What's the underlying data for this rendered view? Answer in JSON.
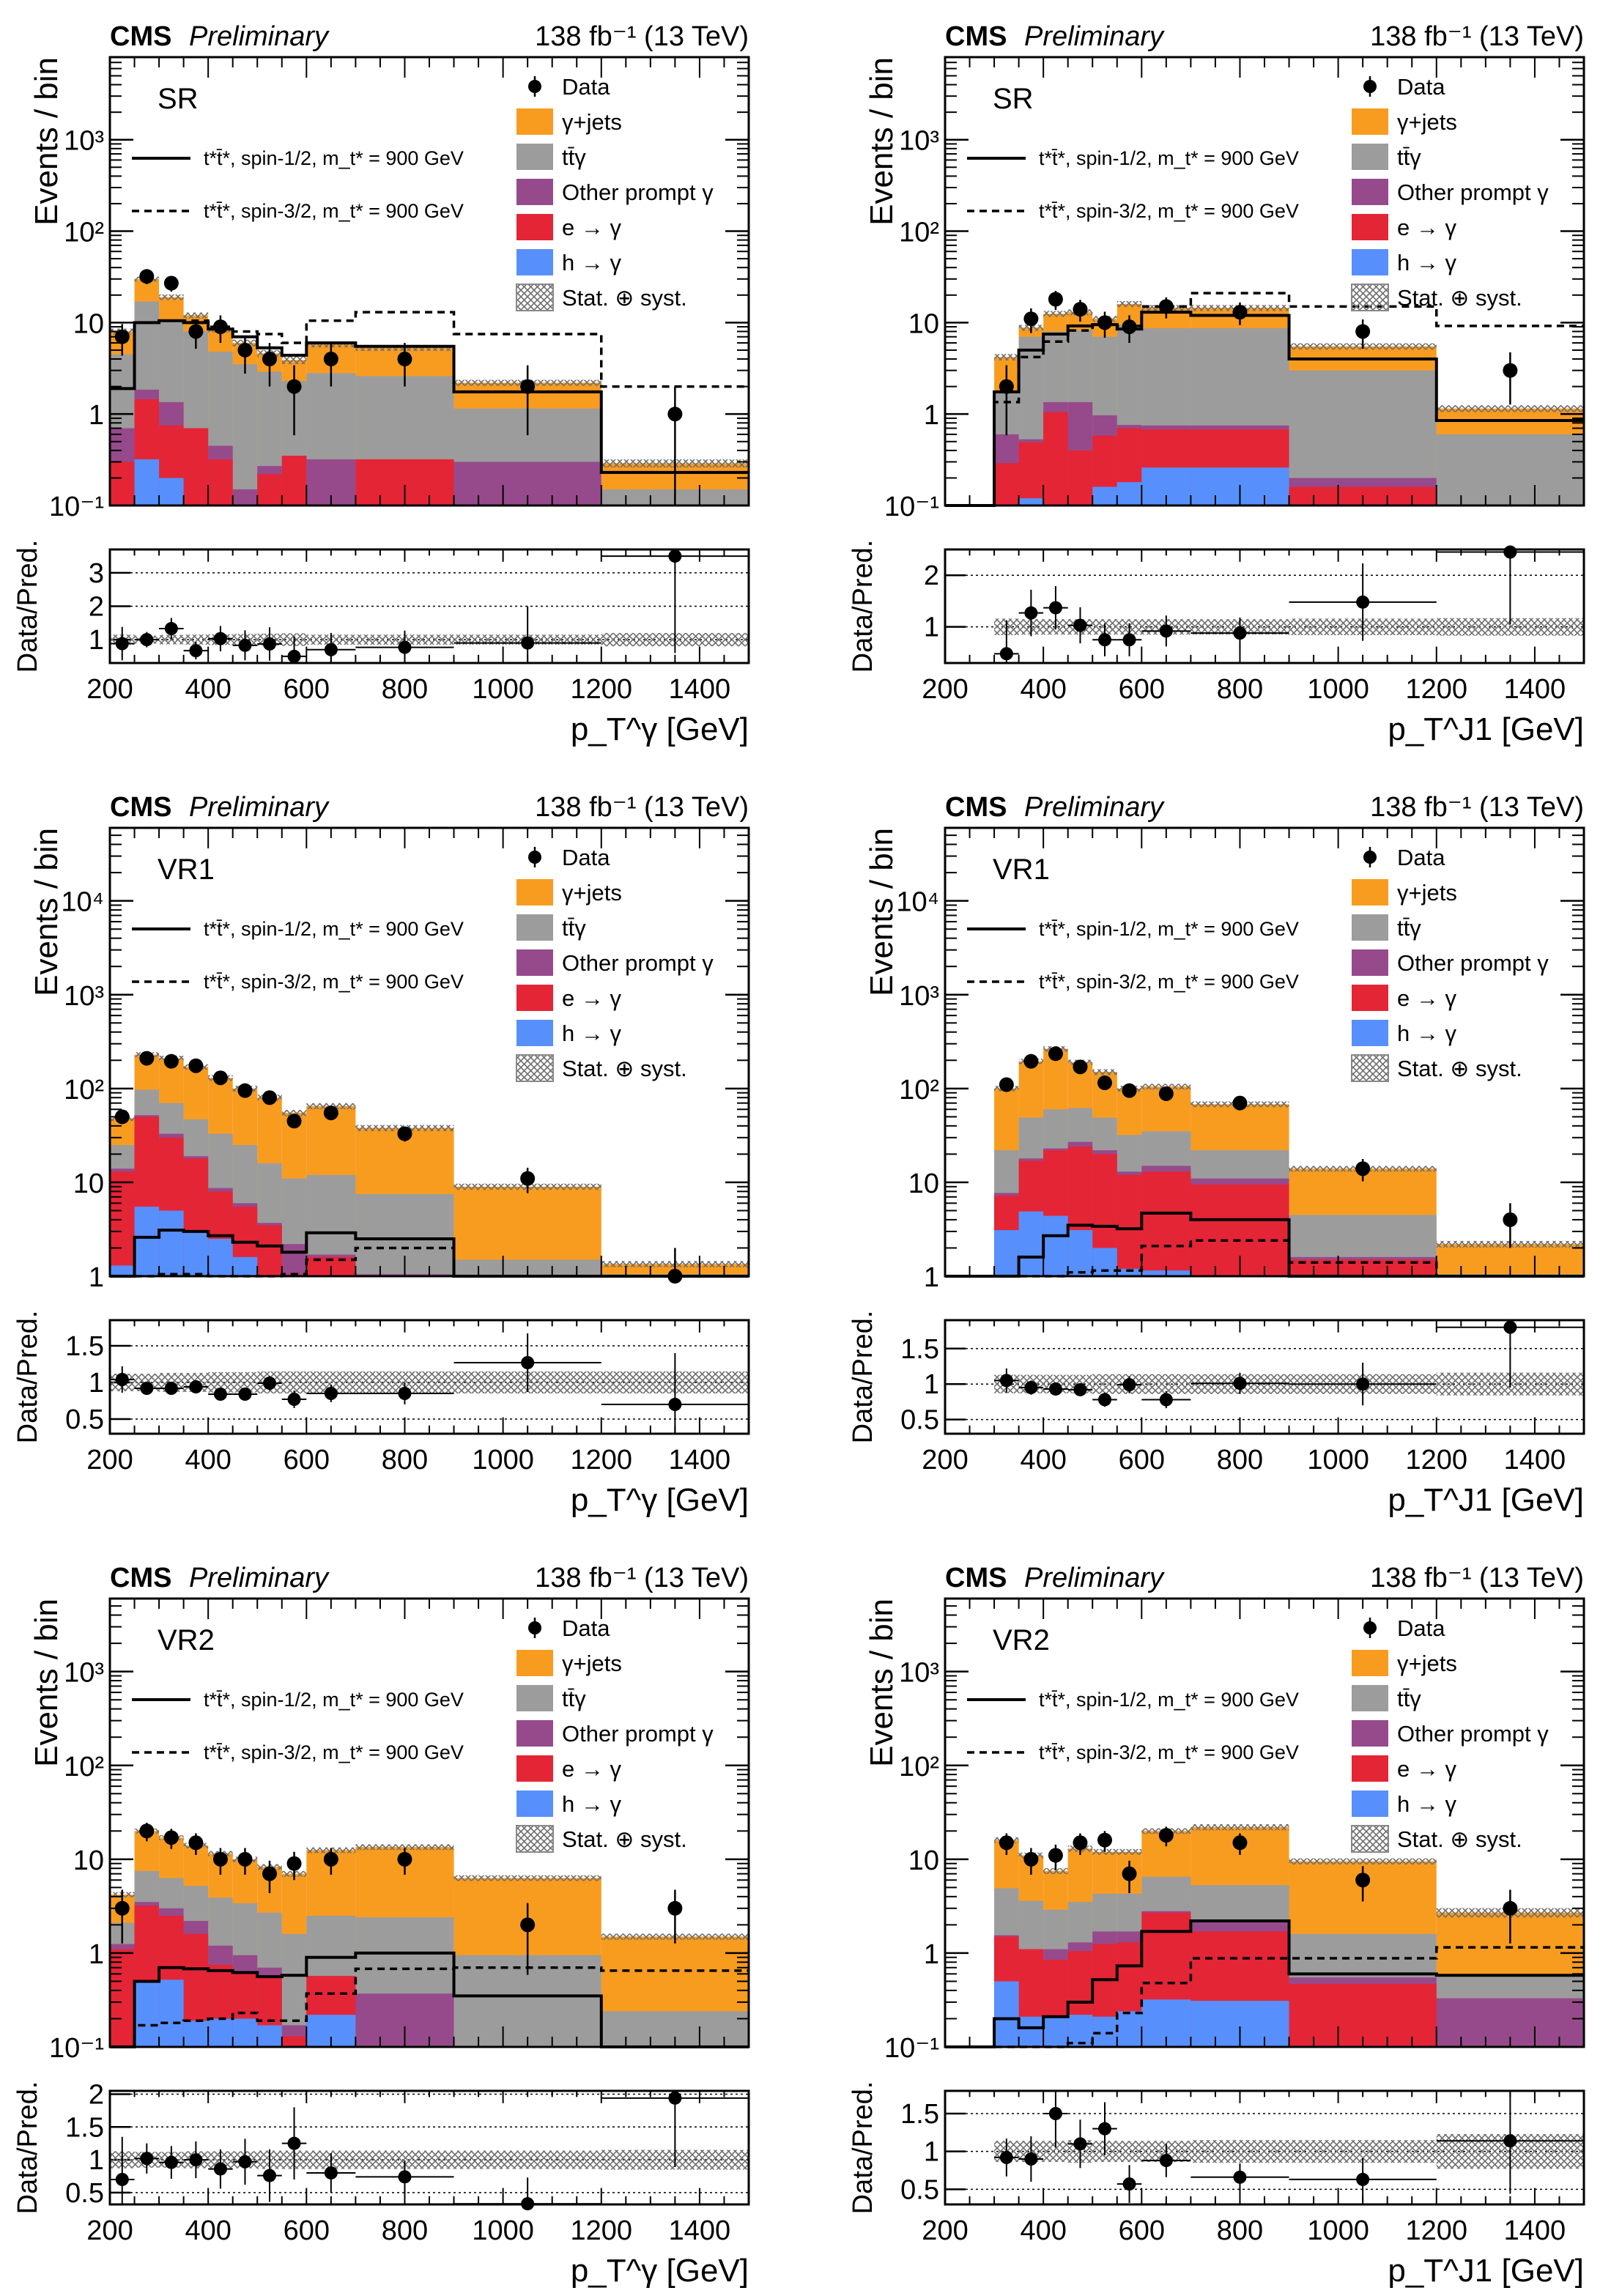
{
  "figure": {
    "experiment_label": "CMS",
    "status_label": "Preliminary",
    "lumi_label": "138 fb⁻¹ (13 TeV)",
    "ylabel_main": "Events / bin",
    "ylabel_ratio": "Data/Pred.",
    "legend": {
      "data": "Data",
      "gjets": "γ+jets",
      "ttg": "tt̄γ",
      "other": "Other prompt γ",
      "etog": "e → γ",
      "htog": "h → γ",
      "unc": "Stat. ⊕ syst.",
      "sig12": "t*t̄*, spin-1/2, m_t* = 900 GeV",
      "sig32": "t*t̄*, spin-3/2, m_t* = 900 GeV"
    },
    "colors": {
      "gjets": "#f89c20",
      "ttg": "#9c9c9c",
      "other": "#964a8b",
      "etog": "#e42536",
      "htog": "#5790fc"
    }
  },
  "chart_data": [
    {
      "type": "bar",
      "stacked": true,
      "region": "SR",
      "xlabel": "p_T^γ [GeV]",
      "ylabel": "Events / bin",
      "yscale": "log",
      "ylim": [
        0.1,
        8000
      ],
      "yticks": [
        "10⁻¹",
        "1",
        "10",
        "10²",
        "10³"
      ],
      "ratio_ylim": [
        0.3,
        3.7
      ],
      "ratio_yticks": [
        "1",
        "2",
        "3"
      ],
      "xlim": [
        200,
        1500
      ],
      "xticks": [
        "200",
        "400",
        "600",
        "800",
        "1000",
        "1200",
        "1400"
      ],
      "bin_edges": [
        200,
        250,
        300,
        350,
        400,
        450,
        500,
        550,
        600,
        700,
        900,
        1200,
        1500
      ],
      "stack_totals": {
        "htog": [
          0.09,
          0.32,
          0.2,
          0.09,
          0.1,
          0.09,
          0.09,
          0.09,
          0.09,
          0.09,
          0.09,
          0.09
        ],
        "etog": [
          0.3,
          1.45,
          0.75,
          0.7,
          0.32,
          0.1,
          0.22,
          0.35,
          0.09,
          0.32,
          0.09,
          0.09
        ],
        "other": [
          0.7,
          1.85,
          1.35,
          0.7,
          0.45,
          0.15,
          0.27,
          0.35,
          0.32,
          0.32,
          0.3,
          0.09
        ],
        "ttg": [
          4.5,
          17,
          10.5,
          8,
          4.8,
          3.5,
          2.9,
          2.3,
          2.8,
          2.6,
          1.15,
          0.15
        ],
        "gjets": [
          8,
          30,
          19,
          12,
          8.5,
          6,
          4.6,
          3.9,
          5.8,
          5.3,
          2.2,
          0.29
        ]
      },
      "signal_spin12": [
        1.9,
        10,
        10.5,
        10,
        8.5,
        7,
        5.3,
        4.4,
        6,
        5.5,
        1.75,
        0.23
      ],
      "signal_spin32": [
        1.9,
        10,
        10.5,
        10.5,
        9,
        8,
        7.5,
        6,
        10.5,
        13,
        7.5,
        2
      ],
      "data": [
        7,
        32,
        27,
        8,
        9,
        5,
        4,
        2,
        4,
        4,
        2,
        1
      ],
      "ratio": [
        0.88,
        1.0,
        1.33,
        0.67,
        1.03,
        0.83,
        0.87,
        0.5,
        0.7,
        0.77,
        0.9,
        3.5
      ],
      "ratio_err": [
        0.5,
        0.23,
        0.32,
        0.26,
        0.38,
        0.45,
        0.5,
        0.6,
        0.5,
        0.5,
        1.1,
        2.9
      ],
      "unc_band_rel": [
        0.15,
        0.12,
        0.14,
        0.15,
        0.16,
        0.17,
        0.18,
        0.19,
        0.15,
        0.15,
        0.15,
        0.2
      ]
    },
    {
      "type": "bar",
      "stacked": true,
      "region": "SR",
      "xlabel": "p_T^J1 [GeV]",
      "ylabel": "Events / bin",
      "yscale": "log",
      "ylim": [
        0.1,
        8000
      ],
      "yticks": [
        "10⁻¹",
        "1",
        "10",
        "10²",
        "10³"
      ],
      "ratio_ylim": [
        0.3,
        2.5
      ],
      "ratio_yticks": [
        "1",
        "2"
      ],
      "xlim": [
        200,
        1500
      ],
      "xticks": [
        "200",
        "400",
        "600",
        "800",
        "1000",
        "1200",
        "1400"
      ],
      "bin_edges": [
        200,
        300,
        350,
        400,
        450,
        500,
        550,
        600,
        700,
        900,
        1200,
        1500
      ],
      "stack_totals": {
        "htog": [
          0,
          0.1,
          0.12,
          0.09,
          0.09,
          0.16,
          0.18,
          0.26,
          0.26,
          0.09,
          0.09
        ],
        "etog": [
          0,
          0.29,
          0.49,
          1.05,
          0.4,
          0.58,
          0.7,
          0.68,
          0.68,
          0.16,
          0.09
        ],
        "other": [
          0,
          0.6,
          0.53,
          1.35,
          1.35,
          0.97,
          0.76,
          0.75,
          0.75,
          0.2,
          0.09
        ],
        "ttg": [
          0,
          1.75,
          7,
          8,
          8.3,
          7,
          9.5,
          8.7,
          8.7,
          3,
          0.6
        ],
        "gjets": [
          0,
          4.2,
          8.8,
          12.5,
          13,
          11,
          16,
          14.5,
          14.5,
          5.5,
          1.15
        ]
      },
      "signal_spin12": [
        0,
        1.75,
        5,
        7.5,
        9.2,
        9.5,
        8.5,
        13,
        12,
        4,
        0.85
      ],
      "signal_spin32": [
        0,
        1.35,
        4.2,
        6.2,
        8.2,
        9.5,
        9.2,
        15,
        21,
        15,
        9.2
      ],
      "data": [
        null,
        2,
        11,
        18,
        14,
        10,
        9,
        15,
        13,
        8,
        3
      ],
      "ratio": [
        null,
        0.48,
        1.27,
        1.37,
        1.03,
        0.75,
        0.75,
        0.92,
        0.88,
        1.48,
        2.45
      ],
      "ratio_err": [
        null,
        0.65,
        0.45,
        0.42,
        0.35,
        0.32,
        0.32,
        0.3,
        0.3,
        0.75,
        1.4
      ],
      "unc_band_rel": [
        0,
        0.16,
        0.15,
        0.15,
        0.15,
        0.15,
        0.15,
        0.15,
        0.15,
        0.16,
        0.17
      ]
    },
    {
      "type": "bar",
      "stacked": true,
      "region": "VR1",
      "xlabel": "p_T^γ [GeV]",
      "ylabel": "Events / bin",
      "yscale": "log",
      "ylim": [
        1,
        60000
      ],
      "yticks": [
        "1",
        "10",
        "10²",
        "10³",
        "10⁴"
      ],
      "ratio_ylim": [
        0.3,
        1.85
      ],
      "ratio_yticks": [
        "0.5",
        "1",
        "1.5"
      ],
      "xlim": [
        200,
        1500
      ],
      "xticks": [
        "200",
        "400",
        "600",
        "800",
        "1000",
        "1200",
        "1400"
      ],
      "bin_edges": [
        200,
        250,
        300,
        350,
        400,
        450,
        500,
        550,
        600,
        700,
        900,
        1200,
        1500
      ],
      "stack_totals": {
        "htog": [
          1.3,
          5.5,
          5,
          3,
          2.5,
          1.6,
          1.0,
          1.0,
          1.0,
          1.0,
          1.0,
          1.0
        ],
        "etog": [
          13,
          50,
          30,
          18,
          8,
          5.5,
          3.5,
          1.05,
          1.6,
          1.0,
          1.0,
          1.0
        ],
        "other": [
          14,
          52,
          33,
          19,
          8.7,
          6,
          3.7,
          2.2,
          1.7,
          1.05,
          1.03,
          1.0
        ],
        "ttg": [
          25,
          97,
          70,
          47,
          33,
          25,
          16,
          11,
          12,
          7.5,
          1.5,
          1.05
        ],
        "gjets": [
          48,
          230,
          210,
          170,
          130,
          100,
          80,
          55,
          65,
          38,
          9,
          1.35
        ]
      },
      "signal_spin12": [
        1.0,
        2.6,
        3.1,
        3.0,
        2.7,
        2.3,
        2.1,
        1.8,
        2.9,
        2.5,
        1.0,
        1.0
      ],
      "signal_spin32": [
        1.0,
        1.0,
        1.05,
        1.05,
        1.0,
        1.0,
        1.0,
        1.05,
        1.5,
        2.0,
        1.0,
        1.0
      ],
      "data": [
        50,
        210,
        195,
        175,
        130,
        95,
        80,
        45,
        55,
        33,
        11,
        1
      ],
      "ratio": [
        1.04,
        0.92,
        0.92,
        0.94,
        0.84,
        0.84,
        0.99,
        0.77,
        0.85,
        0.85,
        1.27,
        0.7
      ],
      "ratio_err": [
        0.18,
        0.07,
        0.08,
        0.08,
        0.08,
        0.09,
        0.1,
        0.12,
        0.12,
        0.15,
        0.4,
        0.7
      ],
      "unc_band_rel": [
        0.12,
        0.12,
        0.13,
        0.13,
        0.14,
        0.14,
        0.15,
        0.15,
        0.15,
        0.15,
        0.15,
        0.15
      ]
    },
    {
      "type": "bar",
      "stacked": true,
      "region": "VR1",
      "xlabel": "p_T^J1 [GeV]",
      "ylabel": "Events / bin",
      "yscale": "log",
      "ylim": [
        1,
        60000
      ],
      "yticks": [
        "1",
        "10",
        "10²",
        "10³",
        "10⁴"
      ],
      "ratio_ylim": [
        0.3,
        1.9
      ],
      "ratio_yticks": [
        "0.5",
        "1",
        "1.5"
      ],
      "xlim": [
        200,
        1500
      ],
      "xticks": [
        "200",
        "400",
        "600",
        "800",
        "1000",
        "1200",
        "1400"
      ],
      "bin_edges": [
        200,
        300,
        350,
        400,
        450,
        500,
        550,
        600,
        700,
        900,
        1200,
        1500
      ],
      "stack_totals": {
        "htog": [
          0,
          3.1,
          4.9,
          4.4,
          3.1,
          2.0,
          1.2,
          1.15,
          1.0,
          1.0,
          1.0
        ],
        "etog": [
          0,
          7.2,
          17,
          22,
          24,
          20,
          12,
          13,
          9.5,
          1.5,
          1.0
        ],
        "other": [
          0,
          7.7,
          18,
          23,
          27,
          22,
          13,
          15,
          11,
          1.6,
          1.02
        ],
        "ttg": [
          0,
          22,
          49,
          60,
          62,
          49,
          32,
          35,
          22,
          4.5,
          1.05
        ],
        "gjets": [
          0,
          100,
          195,
          265,
          190,
          150,
          100,
          105,
          68,
          14,
          2.2
        ]
      },
      "signal_spin12": [
        0,
        1.0,
        1.6,
        2.7,
        3.5,
        3.4,
        3.2,
        4.7,
        4.0,
        1.0,
        1.0
      ],
      "signal_spin32": [
        0,
        1.0,
        1.0,
        1.0,
        1.1,
        1.15,
        1.15,
        2.1,
        2.4,
        1.4,
        1.0
      ],
      "data": [
        null,
        110,
        195,
        235,
        170,
        115,
        95,
        88,
        70,
        14,
        4
      ],
      "ratio": [
        null,
        1.05,
        0.95,
        0.93,
        0.92,
        0.78,
        0.99,
        0.78,
        1.01,
        1.0,
        1.8
      ],
      "ratio_err": [
        null,
        0.17,
        0.1,
        0.09,
        0.09,
        0.1,
        0.12,
        0.12,
        0.15,
        0.3,
        0.85
      ],
      "unc_band_rel": [
        0,
        0.13,
        0.13,
        0.13,
        0.13,
        0.14,
        0.14,
        0.14,
        0.14,
        0.14,
        0.16
      ]
    },
    {
      "type": "bar",
      "stacked": true,
      "region": "VR2",
      "xlabel": "p_T^γ [GeV]",
      "ylabel": "Events / bin",
      "yscale": "log",
      "ylim": [
        0.1,
        6000
      ],
      "yticks": [
        "10⁻¹",
        "1",
        "10",
        "10²",
        "10³"
      ],
      "ratio_ylim": [
        0.32,
        2.05
      ],
      "ratio_yticks": [
        "0.5",
        "1",
        "1.5",
        "2"
      ],
      "xlim": [
        200,
        1500
      ],
      "xticks": [
        "200",
        "400",
        "600",
        "800",
        "1000",
        "1200",
        "1400"
      ],
      "bin_edges": [
        200,
        250,
        300,
        350,
        400,
        450,
        500,
        550,
        600,
        700,
        900,
        1200,
        1500
      ],
      "stack_totals": {
        "htog": [
          0.1,
          0.5,
          0.52,
          0.19,
          0.2,
          0.2,
          0.17,
          0.1,
          0.22,
          0.1,
          0.1,
          0.1
        ],
        "etog": [
          1.1,
          3.2,
          2.5,
          1.6,
          0.75,
          0.62,
          0.58,
          0.13,
          0.57,
          0.1,
          0.1,
          0.1
        ],
        "other": [
          1.25,
          3.5,
          3.0,
          2.2,
          1.2,
          0.95,
          0.7,
          0.17,
          0.57,
          0.37,
          0.1,
          0.1
        ],
        "ttg": [
          2.1,
          7.5,
          6.3,
          5.2,
          3.9,
          3.4,
          2.7,
          1.6,
          2.5,
          2.4,
          0.95,
          0.24
        ],
        "gjets": [
          4.2,
          20,
          17,
          14,
          11.5,
          10,
          8.3,
          7,
          12.5,
          13.5,
          6.3,
          1.5
        ]
      },
      "signal_spin12": [
        0.1,
        0.5,
        0.7,
        0.68,
        0.65,
        0.62,
        0.56,
        0.58,
        0.9,
        1.0,
        0.35,
        0.1
      ],
      "signal_spin32": [
        0.1,
        0.17,
        0.18,
        0.19,
        0.2,
        0.23,
        0.19,
        0.19,
        0.37,
        0.68,
        0.7,
        0.65
      ],
      "data": [
        3,
        20,
        17,
        15,
        10,
        10,
        7,
        9,
        10,
        10,
        2,
        3
      ],
      "ratio": [
        0.7,
        1.02,
        0.96,
        1.0,
        0.86,
        0.97,
        0.76,
        1.25,
        0.8,
        0.74,
        0.33,
        1.94
      ],
      "ratio_err": [
        0.65,
        0.23,
        0.25,
        0.28,
        0.3,
        0.35,
        0.4,
        0.55,
        0.3,
        0.25,
        0.4,
        1.05
      ],
      "unc_band_rel": [
        0.13,
        0.12,
        0.12,
        0.13,
        0.13,
        0.13,
        0.14,
        0.14,
        0.14,
        0.14,
        0.14,
        0.15
      ]
    },
    {
      "type": "bar",
      "stacked": true,
      "region": "VR2",
      "xlabel": "p_T^J1 [GeV]",
      "ylabel": "Events / bin",
      "yscale": "log",
      "ylim": [
        0.1,
        6000
      ],
      "yticks": [
        "10⁻¹",
        "1",
        "10",
        "10²",
        "10³"
      ],
      "ratio_ylim": [
        0.3,
        1.8
      ],
      "ratio_yticks": [
        "0.5",
        "1",
        "1.5"
      ],
      "xlim": [
        200,
        1500
      ],
      "xticks": [
        "200",
        "400",
        "600",
        "800",
        "1000",
        "1200",
        "1400"
      ],
      "bin_edges": [
        200,
        300,
        350,
        400,
        450,
        500,
        550,
        600,
        700,
        900,
        1200,
        1500
      ],
      "stack_totals": {
        "htog": [
          0,
          0.5,
          0.21,
          0.21,
          0.22,
          0.21,
          0.24,
          0.32,
          0.31,
          0.1,
          0.1
        ],
        "etog": [
          0,
          1.5,
          1.1,
          0.85,
          1.05,
          1.25,
          1.3,
          2.7,
          1.7,
          0.47,
          0.1
        ],
        "other": [
          0,
          1.55,
          1.1,
          1.1,
          1.3,
          1.7,
          1.7,
          2.8,
          2.2,
          0.55,
          0.33
        ],
        "ttg": [
          0,
          4.9,
          3.6,
          2.9,
          3.5,
          4.3,
          4.3,
          6.5,
          5.3,
          1.6,
          0.58
        ],
        "gjets": [
          0,
          16,
          11,
          7.5,
          13,
          12,
          12,
          20,
          22,
          9.5,
          2.7
        ]
      },
      "signal_spin12": [
        0.1,
        0.2,
        0.16,
        0.21,
        0.3,
        0.52,
        0.73,
        1.7,
        2.2,
        0.6,
        0.58
      ],
      "signal_spin32": [
        0.1,
        0.1,
        0.1,
        0.1,
        0.11,
        0.14,
        0.23,
        0.48,
        0.88,
        0.88,
        1.15
      ],
      "data": [
        null,
        15,
        10,
        11,
        15,
        16,
        7,
        18,
        15,
        6,
        3
      ],
      "ratio": [
        null,
        0.92,
        0.9,
        1.5,
        1.1,
        1.3,
        0.57,
        0.88,
        0.66,
        0.63,
        1.14
      ],
      "ratio_err": [
        null,
        0.25,
        0.3,
        0.45,
        0.32,
        0.35,
        0.25,
        0.22,
        0.18,
        0.28,
        0.7
      ],
      "unc_band_rel": [
        0,
        0.14,
        0.14,
        0.14,
        0.15,
        0.14,
        0.14,
        0.14,
        0.15,
        0.15,
        0.23
      ]
    }
  ]
}
